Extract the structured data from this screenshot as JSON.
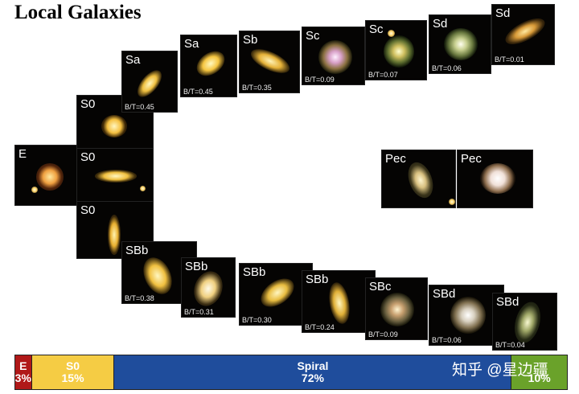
{
  "title": "Local Galaxies",
  "colors": {
    "elliptical": "#b01818",
    "s0": "#f5cc44",
    "spiral": "#1f4d9c",
    "peculiar": "#6aa22a"
  },
  "tiles": {
    "e": {
      "label": "E",
      "bt": ""
    },
    "s0a": {
      "label": "S0",
      "bt": ""
    },
    "s0b": {
      "label": "S0",
      "bt": ""
    },
    "s0c": {
      "label": "S0",
      "bt": ""
    },
    "sa1": {
      "label": "Sa",
      "bt": "B/T=0.45"
    },
    "sa2": {
      "label": "Sa",
      "bt": "B/T=0.45"
    },
    "sb": {
      "label": "Sb",
      "bt": "B/T=0.35"
    },
    "sc1": {
      "label": "Sc",
      "bt": "B/T=0.09"
    },
    "sc2": {
      "label": "Sc",
      "bt": "B/T=0.07"
    },
    "sd1": {
      "label": "Sd",
      "bt": "B/T=0.06"
    },
    "sd2": {
      "label": "Sd",
      "bt": "B/T=0.01"
    },
    "pec1": {
      "label": "Pec",
      "bt": ""
    },
    "pec2": {
      "label": "Pec",
      "bt": ""
    },
    "sbb1": {
      "label": "SBb",
      "bt": "B/T=0.38"
    },
    "sbb2": {
      "label": "SBb",
      "bt": "B/T=0.31"
    },
    "sbb3": {
      "label": "SBb",
      "bt": "B/T=0.30"
    },
    "sbb4": {
      "label": "SBb",
      "bt": "B/T=0.24"
    },
    "sbc": {
      "label": "SBc",
      "bt": "B/T=0.09"
    },
    "sbd1": {
      "label": "SBd",
      "bt": "B/T=0.06"
    },
    "sbd2": {
      "label": "SBd",
      "bt": "B/T=0.04"
    }
  },
  "bar": {
    "e": {
      "name": "E",
      "pct": "3%",
      "fraction": 0.03
    },
    "s0": {
      "name": "S0",
      "pct": "15%",
      "fraction": 0.15
    },
    "spiral": {
      "name": "Spiral",
      "pct": "72%",
      "fraction": 0.72
    },
    "pec": {
      "name": "",
      "pct": "10%",
      "fraction": 0.1
    }
  },
  "watermark": "知乎 @星边疆"
}
